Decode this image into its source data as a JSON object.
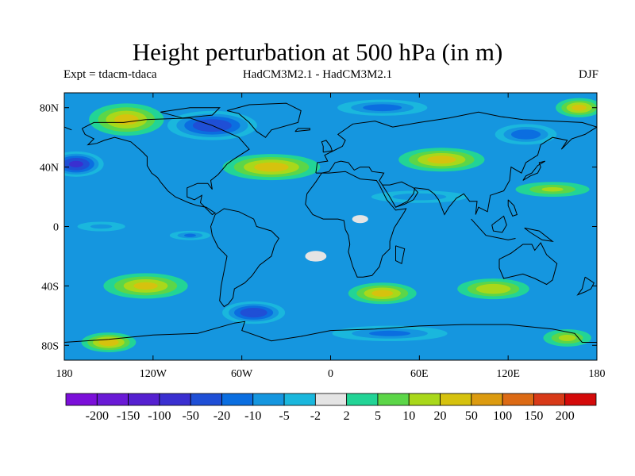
{
  "chart_data": {
    "type": "heatmap",
    "title": "Height perturbation at 500 hPa (in m)",
    "subtitle_left": "Expt = tdacm-tdaca",
    "subtitle_center": "HadCM3M2.1 - HadCM3M2.1",
    "subtitle_right": "DJF",
    "xlim": [
      -180,
      180
    ],
    "ylim": [
      -90,
      90
    ],
    "x_ticks": [
      {
        "value": -180,
        "label": "180"
      },
      {
        "value": -120,
        "label": "120W"
      },
      {
        "value": -60,
        "label": "60W"
      },
      {
        "value": 0,
        "label": "0"
      },
      {
        "value": 60,
        "label": "60E"
      },
      {
        "value": 120,
        "label": "120E"
      },
      {
        "value": 180,
        "label": "180"
      }
    ],
    "y_ticks": [
      {
        "value": 80,
        "label": "80N"
      },
      {
        "value": 40,
        "label": "40N"
      },
      {
        "value": 0,
        "label": "0"
      },
      {
        "value": -40,
        "label": "40S"
      },
      {
        "value": -80,
        "label": "80S"
      }
    ],
    "colorbar": {
      "colors": [
        "#7b0fd9",
        "#6a1ad6",
        "#5520d0",
        "#3a2fd0",
        "#1f4fd6",
        "#0b6ee0",
        "#1596df",
        "#1ab7dd",
        "#e4e4e4",
        "#22d496",
        "#5cd648",
        "#a9d81a",
        "#d6c20e",
        "#dc9b10",
        "#dc6a14",
        "#d83a18",
        "#d40a0a"
      ],
      "labels": [
        "-200",
        "-150",
        "-100",
        "-50",
        "-20",
        "-10",
        "-5",
        "-2",
        "2",
        "5",
        "10",
        "20",
        "50",
        "100",
        "150",
        "200"
      ]
    },
    "anomalies": [
      {
        "lon": -172,
        "lat": 42,
        "value": -55,
        "rlon": 24,
        "rlat": 11,
        "shape": "blob"
      },
      {
        "lon": -80,
        "lat": 68,
        "value": -40,
        "rlon": 40,
        "rlat": 13,
        "shape": "blob"
      },
      {
        "lon": -138,
        "lat": 72,
        "value": 25,
        "rlon": 35,
        "rlat": 15,
        "shape": "blob"
      },
      {
        "lon": -40,
        "lat": 40,
        "value": 28,
        "rlon": 45,
        "rlat": 12,
        "shape": "blob"
      },
      {
        "lon": 35,
        "lat": 80,
        "value": -15,
        "rlon": 45,
        "rlat": 8,
        "shape": "blob"
      },
      {
        "lon": 75,
        "lat": 45,
        "value": 26,
        "rlon": 40,
        "rlat": 11,
        "shape": "blob"
      },
      {
        "lon": 132,
        "lat": 62,
        "value": -18,
        "rlon": 30,
        "rlat": 10,
        "shape": "blob"
      },
      {
        "lon": 168,
        "lat": 80,
        "value": 24,
        "rlon": 22,
        "rlat": 9,
        "shape": "blob"
      },
      {
        "lon": 150,
        "lat": 25,
        "value": 10,
        "rlon": 40,
        "rlat": 8,
        "shape": "blob"
      },
      {
        "lon": 60,
        "lat": 20,
        "value": -8,
        "rlon": 55,
        "rlat": 7,
        "shape": "blob"
      },
      {
        "lon": -155,
        "lat": 0,
        "value": -6,
        "rlon": 30,
        "rlat": 6,
        "shape": "blob"
      },
      {
        "lon": -95,
        "lat": -6,
        "value": -10,
        "rlon": 22,
        "rlat": 5,
        "shape": "blob"
      },
      {
        "lon": -125,
        "lat": -40,
        "value": 22,
        "rlon": 40,
        "rlat": 12,
        "shape": "blob"
      },
      {
        "lon": -52,
        "lat": -58,
        "value": -40,
        "rlon": 28,
        "rlat": 10,
        "shape": "blob"
      },
      {
        "lon": 35,
        "lat": -45,
        "value": 24,
        "rlon": 32,
        "rlat": 10,
        "shape": "blob"
      },
      {
        "lon": 110,
        "lat": -42,
        "value": 18,
        "rlon": 35,
        "rlat": 10,
        "shape": "blob"
      },
      {
        "lon": 40,
        "lat": -72,
        "value": -12,
        "rlon": 60,
        "rlat": 8,
        "shape": "blob"
      },
      {
        "lon": -150,
        "lat": -78,
        "value": 30,
        "rlon": 25,
        "rlat": 9,
        "shape": "blob"
      },
      {
        "lon": 160,
        "lat": -75,
        "value": 12,
        "rlon": 25,
        "rlat": 9,
        "shape": "blob"
      },
      {
        "lon": -10,
        "lat": -20,
        "value": -1,
        "rlon": 40,
        "rlat": 20,
        "shape": "blob"
      },
      {
        "lon": 20,
        "lat": 5,
        "value": 1,
        "rlon": 30,
        "rlat": 15,
        "shape": "blob"
      }
    ],
    "background_value": -8
  }
}
